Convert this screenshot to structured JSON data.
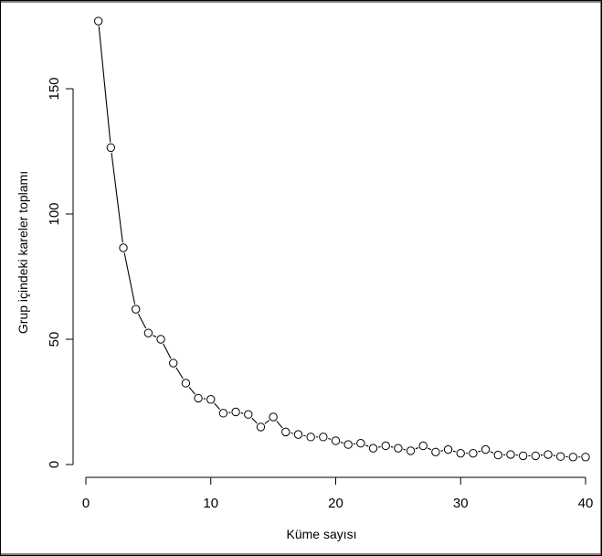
{
  "chart_data": {
    "type": "line",
    "xlabel": "Küme sayısı",
    "ylabel": "Grup içindeki kareler toplamı",
    "xlim": [
      0,
      40
    ],
    "ylim": [
      -2,
      178
    ],
    "xticks": [
      0,
      10,
      20,
      30,
      40
    ],
    "yticks": [
      0,
      50,
      100,
      150
    ],
    "xtick_labels": [
      "0",
      "10",
      "20",
      "30",
      "40"
    ],
    "ytick_labels": [
      "0",
      "50",
      "100",
      "150"
    ],
    "grid": false,
    "legend": "none",
    "markers": "open-circle",
    "series": [
      {
        "x": [
          1,
          2,
          3,
          4,
          5,
          6,
          7,
          8,
          9,
          10,
          11,
          12,
          13,
          14,
          15,
          16,
          17,
          18,
          19,
          20,
          21,
          22,
          23,
          24,
          25,
          26,
          27,
          28,
          29,
          30,
          31,
          32,
          33,
          34,
          35,
          36,
          37,
          38,
          39,
          40
        ],
        "y": [
          177,
          126.5,
          86.5,
          62,
          52.5,
          50,
          40.5,
          32.5,
          26.5,
          26,
          20.5,
          21,
          20,
          15,
          19,
          13,
          12,
          11,
          11,
          9.5,
          8,
          8.5,
          6.5,
          7.5,
          6.5,
          5.5,
          7.5,
          5,
          6,
          4.5,
          4.5,
          6,
          3.8,
          4,
          3.5,
          3.5,
          4,
          3.2,
          3,
          3
        ]
      }
    ]
  }
}
